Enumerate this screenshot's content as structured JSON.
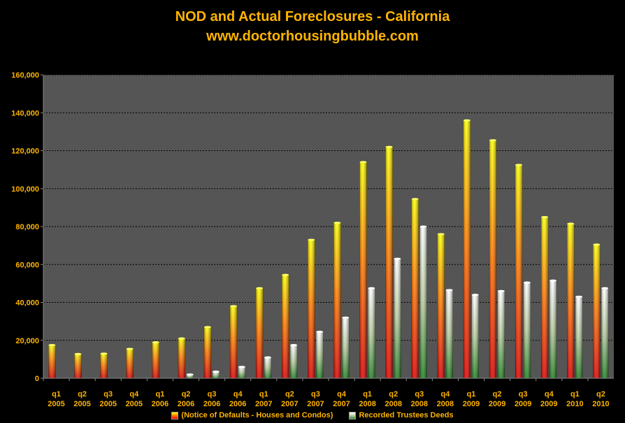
{
  "title": "NOD and Actual Foreclosures - California",
  "subtitle": "www.doctorhousingbubble.com",
  "colors": {
    "background": "#000000",
    "plot_area": "#555555",
    "text": "#FFB400",
    "nod_top": "#FFFF00",
    "nod_mid": "#FF8000",
    "nod_bottom": "#EE0000",
    "deeds_top": "#FFFFFF",
    "deeds_bottom": "#2A8A2A"
  },
  "chart_data": {
    "type": "bar",
    "categories": [
      [
        "q1",
        "2005"
      ],
      [
        "q2",
        "2005"
      ],
      [
        "q3",
        "2005"
      ],
      [
        "q4",
        "2005"
      ],
      [
        "q1",
        "2006"
      ],
      [
        "q2",
        "2006"
      ],
      [
        "q3",
        "2006"
      ],
      [
        "q4",
        "2006"
      ],
      [
        "q1",
        "2007"
      ],
      [
        "q2",
        "2007"
      ],
      [
        "q3",
        "2007"
      ],
      [
        "q4",
        "2007"
      ],
      [
        "q1",
        "2008"
      ],
      [
        "q2",
        "2008"
      ],
      [
        "q3",
        "2008"
      ],
      [
        "q4",
        "2008"
      ],
      [
        "q1",
        "2009"
      ],
      [
        "q2",
        "2009"
      ],
      [
        "q3",
        "2009"
      ],
      [
        "q4",
        "2009"
      ],
      [
        "q1",
        "2010"
      ],
      [
        "q2",
        "2010"
      ]
    ],
    "series": [
      {
        "name": "(Notice of Defaults - Houses and Condos)",
        "values": [
          17500,
          12800,
          13000,
          15500,
          19000,
          21000,
          27000,
          38000,
          47500,
          54500,
          73000,
          82000,
          114000,
          122000,
          94500,
          76000,
          136000,
          125500,
          112500,
          85000,
          81500,
          70500
        ]
      },
      {
        "name": "Recorded Trustees Deeds",
        "values": [
          0,
          0,
          0,
          0,
          0,
          2000,
          3500,
          6000,
          11000,
          17500,
          24500,
          32000,
          47500,
          63000,
          80000,
          46500,
          44000,
          46000,
          50500,
          51500,
          43000,
          47500
        ]
      }
    ],
    "ylim": [
      0,
      160000
    ],
    "yticks": [
      "0",
      "20,000",
      "40,000",
      "60,000",
      "80,000",
      "100,000",
      "120,000",
      "140,000",
      "160,000"
    ],
    "grid": true,
    "legend_position": "bottom"
  }
}
